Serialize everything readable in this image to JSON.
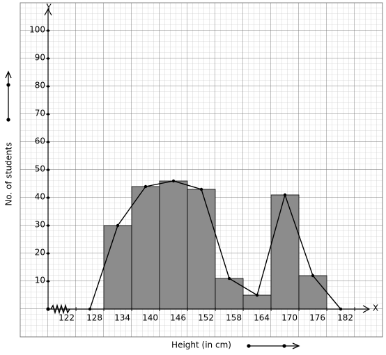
{
  "chart_data": {
    "type": "histogram",
    "x_label": "Height (in cm)",
    "y_label": "No. of students",
    "x_axis_name": "X",
    "y_axis_name": "Y",
    "bins": [
      128,
      134,
      140,
      146,
      152,
      158,
      164,
      170,
      176
    ],
    "values": [
      30,
      44,
      46,
      43,
      11,
      5,
      41,
      12
    ],
    "color": "#8c8c8c",
    "polygon": {
      "x": [
        125,
        131,
        137,
        143,
        149,
        155,
        161,
        167,
        173,
        179
      ],
      "values": [
        0,
        30,
        44,
        46,
        43,
        11,
        5,
        41,
        12,
        0
      ],
      "color": "#000000"
    },
    "xlim": [
      116,
      185
    ],
    "ylim": [
      0,
      100
    ],
    "xticks": [
      122,
      128,
      134,
      140,
      146,
      152,
      158,
      164,
      170,
      176,
      182
    ],
    "yticks": [
      10,
      20,
      30,
      40,
      50,
      60,
      70,
      80,
      90,
      100
    ],
    "grid": true
  }
}
